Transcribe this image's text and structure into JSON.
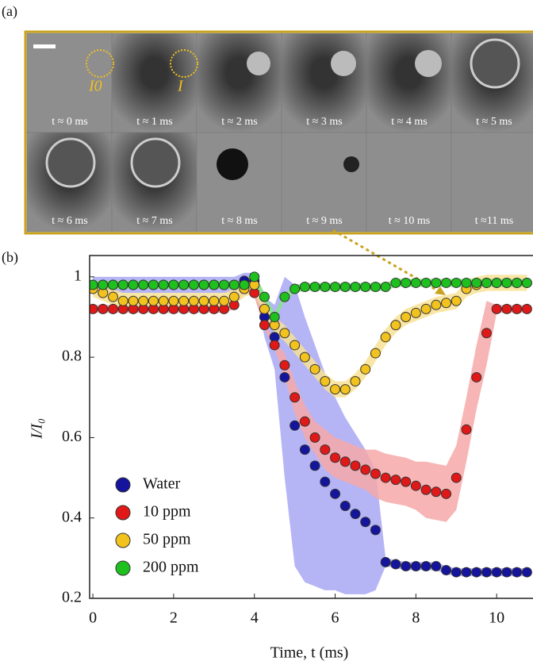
{
  "panel_a": {
    "label": "(a)",
    "ref_label": "I0",
    "frame_label": "I",
    "frames": [
      "t ≈ 0 ms",
      "t ≈ 1 ms",
      "t ≈ 2 ms",
      "t ≈ 3 ms",
      "t ≈ 4 ms",
      "t ≈ 5 ms",
      "t ≈ 6 ms",
      "t ≈ 7 ms",
      "t ≈ 8 ms",
      "t ≈ 9 ms",
      "t ≈ 10 ms",
      "t ≈11 ms"
    ]
  },
  "chart_data": {
    "type": "scatter",
    "panel_label": "(b)",
    "xlabel": "Time, t (ms)",
    "ylabel": "I/I₀",
    "xlim": [
      -0.08,
      10.9
    ],
    "ylim": [
      0.2,
      1.053
    ],
    "xticks": [
      0,
      2,
      4,
      6,
      8,
      10
    ],
    "yticks": [
      0.2,
      0.4,
      0.6,
      0.8,
      1
    ],
    "x": [
      0,
      0.25,
      0.5,
      0.75,
      1,
      1.25,
      1.5,
      1.75,
      2,
      2.25,
      2.5,
      2.75,
      3,
      3.25,
      3.5,
      3.75,
      4,
      4.25,
      4.5,
      4.75,
      5,
      5.25,
      5.5,
      5.75,
      6,
      6.25,
      6.5,
      6.75,
      7,
      7.25,
      7.5,
      7.75,
      8,
      8.25,
      8.5,
      8.75,
      9,
      9.25,
      9.5,
      9.75,
      10,
      10.25,
      10.5,
      10.75
    ],
    "series": [
      {
        "name": "Water",
        "color": "#14149c",
        "band_color": "#a8a8f4",
        "values": [
          0.98,
          0.98,
          0.98,
          0.98,
          0.98,
          0.98,
          0.98,
          0.98,
          0.98,
          0.98,
          0.98,
          0.98,
          0.98,
          0.98,
          0.98,
          0.99,
          0.99,
          0.9,
          0.85,
          0.75,
          0.63,
          0.57,
          0.53,
          0.49,
          0.46,
          0.43,
          0.41,
          0.39,
          0.37,
          0.29,
          0.285,
          0.28,
          0.28,
          0.28,
          0.28,
          0.27,
          0.265,
          0.265,
          0.265,
          0.265,
          0.265,
          0.265,
          0.265,
          0.265
        ],
        "errors": [
          0.02,
          0.02,
          0.02,
          0.02,
          0.02,
          0.02,
          0.02,
          0.02,
          0.02,
          0.02,
          0.02,
          0.02,
          0.02,
          0.02,
          0.02,
          0.02,
          0.02,
          0.05,
          0.08,
          0.25,
          0.35,
          0.33,
          0.3,
          0.27,
          0.24,
          0.22,
          0.2,
          0.18,
          0.15,
          0.01,
          0.01,
          0.01,
          0.01,
          0.01,
          0.01,
          0.01,
          0.01,
          0.01,
          0.01,
          0.01,
          0.01,
          0.01,
          0.01,
          0.01
        ]
      },
      {
        "name": "10 ppm",
        "color": "#e01818",
        "band_color": "#f6a8a8",
        "values": [
          0.92,
          0.92,
          0.92,
          0.92,
          0.92,
          0.92,
          0.92,
          0.92,
          0.92,
          0.92,
          0.92,
          0.92,
          0.92,
          0.92,
          0.93,
          0.97,
          0.96,
          0.88,
          0.83,
          0.78,
          0.7,
          0.64,
          0.6,
          0.57,
          0.55,
          0.54,
          0.53,
          0.52,
          0.51,
          0.5,
          0.495,
          0.49,
          0.48,
          0.47,
          0.465,
          0.46,
          0.5,
          0.62,
          0.75,
          0.86,
          0.92,
          0.92,
          0.92,
          0.92
        ],
        "errors": [
          0.01,
          0.01,
          0.01,
          0.01,
          0.01,
          0.01,
          0.01,
          0.01,
          0.01,
          0.01,
          0.01,
          0.01,
          0.01,
          0.01,
          0.01,
          0.01,
          0.01,
          0.01,
          0.01,
          0.03,
          0.04,
          0.04,
          0.04,
          0.05,
          0.05,
          0.05,
          0.05,
          0.05,
          0.06,
          0.06,
          0.06,
          0.06,
          0.06,
          0.07,
          0.07,
          0.07,
          0.08,
          0.08,
          0.08,
          0.08,
          0.01,
          0.01,
          0.01,
          0.01
        ]
      },
      {
        "name": "50 ppm",
        "color": "#f2c21e",
        "band_color": "#f8e294",
        "values": [
          0.97,
          0.96,
          0.95,
          0.94,
          0.94,
          0.94,
          0.94,
          0.94,
          0.94,
          0.94,
          0.94,
          0.94,
          0.94,
          0.94,
          0.95,
          0.97,
          0.98,
          0.92,
          0.88,
          0.86,
          0.83,
          0.8,
          0.77,
          0.74,
          0.72,
          0.72,
          0.74,
          0.77,
          0.81,
          0.85,
          0.88,
          0.9,
          0.91,
          0.92,
          0.93,
          0.935,
          0.94,
          0.97,
          0.98,
          0.985,
          0.985,
          0.985,
          0.985,
          0.985
        ],
        "errors": [
          0.02,
          0.02,
          0.02,
          0.02,
          0.02,
          0.02,
          0.02,
          0.02,
          0.02,
          0.02,
          0.02,
          0.02,
          0.02,
          0.02,
          0.02,
          0.02,
          0.02,
          0.02,
          0.02,
          0.02,
          0.02,
          0.02,
          0.02,
          0.02,
          0.02,
          0.02,
          0.02,
          0.02,
          0.02,
          0.02,
          0.02,
          0.02,
          0.02,
          0.02,
          0.02,
          0.02,
          0.02,
          0.02,
          0.02,
          0.02,
          0.02,
          0.02,
          0.02,
          0.02
        ]
      },
      {
        "name": "200 ppm",
        "color": "#1ec01e",
        "band_color": "#84e684",
        "values": [
          0.98,
          0.98,
          0.98,
          0.98,
          0.98,
          0.98,
          0.98,
          0.98,
          0.98,
          0.98,
          0.98,
          0.98,
          0.98,
          0.98,
          0.98,
          0.98,
          1.0,
          0.95,
          0.9,
          0.95,
          0.97,
          0.975,
          0.975,
          0.975,
          0.975,
          0.975,
          0.975,
          0.975,
          0.975,
          0.975,
          0.985,
          0.985,
          0.985,
          0.985,
          0.985,
          0.985,
          0.985,
          0.985,
          0.985,
          0.985,
          0.985,
          0.985,
          0.985,
          0.985
        ],
        "errors": [
          0.01,
          0.01,
          0.01,
          0.01,
          0.01,
          0.01,
          0.01,
          0.01,
          0.01,
          0.01,
          0.01,
          0.01,
          0.01,
          0.01,
          0.01,
          0.01,
          0.01,
          0.01,
          0.01,
          0.01,
          0.01,
          0.01,
          0.01,
          0.01,
          0.01,
          0.01,
          0.01,
          0.01,
          0.01,
          0.01,
          0.01,
          0.01,
          0.01,
          0.01,
          0.01,
          0.01,
          0.01,
          0.01,
          0.01,
          0.01,
          0.01,
          0.01,
          0.01,
          0.01
        ]
      }
    ]
  }
}
